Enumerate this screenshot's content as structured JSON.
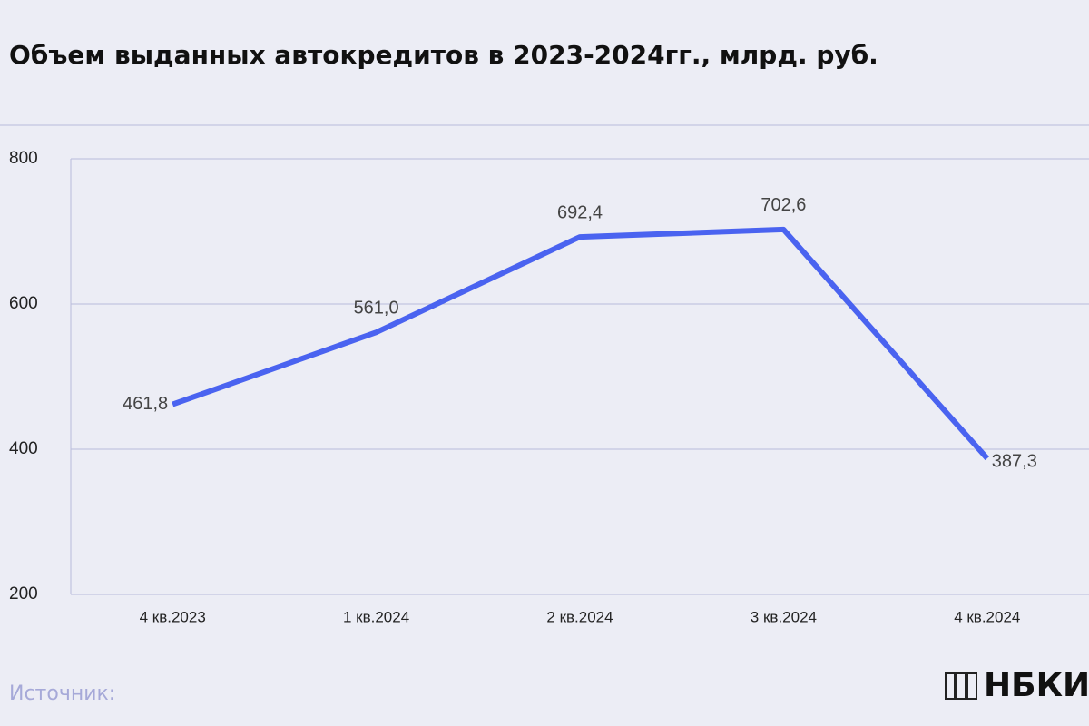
{
  "chart_data": {
    "type": "line",
    "title": "Объем выданных автокредитов в 2023-2024гг., млрд. руб.",
    "categories": [
      "4 кв.2023",
      "1 кв.2024",
      "2 кв.2024",
      "3 кв.2024",
      "4 кв.2024"
    ],
    "series": [
      {
        "color": "#4a63f0",
        "values": [
          461.8,
          561.0,
          692.4,
          702.6,
          387.3
        ],
        "value_labels": [
          "461,8",
          "561,0",
          "692,4",
          "702,6",
          "387,3"
        ]
      }
    ],
    "ylim": [
      200,
      800
    ],
    "yticks": [
      200,
      400,
      600,
      800
    ],
    "grid": true
  },
  "footer": {
    "source": "Источник:",
    "logo": "НБКИ"
  }
}
